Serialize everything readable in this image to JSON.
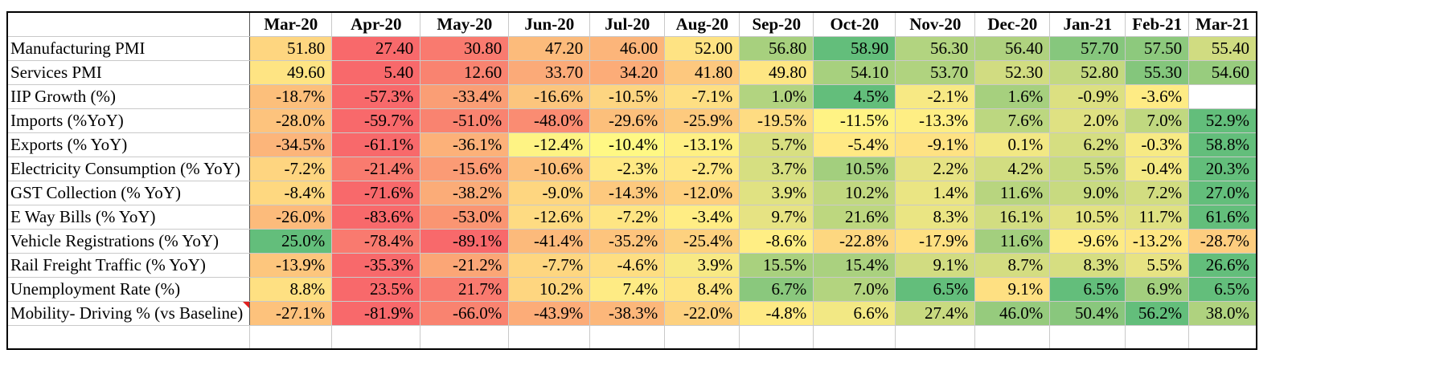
{
  "chart_data": {
    "type": "table",
    "title": "",
    "columns": [
      "Mar-20",
      "Apr-20",
      "May-20",
      "Jun-20",
      "Jul-20",
      "Aug-20",
      "Sep-20",
      "Oct-20",
      "Nov-20",
      "Dec-20",
      "Jan-21",
      "Feb-21",
      "Mar-21"
    ],
    "rows": [
      {
        "label": "Manufacturing PMI",
        "values": [
          "51.80",
          "27.40",
          "30.80",
          "47.20",
          "46.00",
          "52.00",
          "56.80",
          "58.90",
          "56.30",
          "56.40",
          "57.70",
          "57.50",
          "55.40"
        ],
        "colors": [
          "#fed680",
          "#f8696b",
          "#f97a6f",
          "#fcbb7b",
          "#fcb57a",
          "#fee383",
          "#a7d07e",
          "#63be7b",
          "#b2d480",
          "#afd27f",
          "#86c77d",
          "#8dc97d",
          "#d0dc81"
        ]
      },
      {
        "label": "Services PMI",
        "values": [
          "49.60",
          "5.40",
          "12.60",
          "33.70",
          "34.20",
          "41.80",
          "49.80",
          "54.10",
          "53.70",
          "52.30",
          "52.80",
          "55.30",
          "54.60"
        ],
        "colors": [
          "#fee483",
          "#f8696b",
          "#f98370",
          "#fbaa78",
          "#fcac78",
          "#fdc87e",
          "#fee683",
          "#a7d07e",
          "#b0d37f",
          "#d1dc81",
          "#c4d980",
          "#84c67c",
          "#98cc7e"
        ]
      },
      {
        "label": "IIP Growth (%)",
        "values": [
          "-18.7%",
          "-57.3%",
          "-33.4%",
          "-16.6%",
          "-10.5%",
          "-7.1%",
          "1.0%",
          "4.5%",
          "-2.1%",
          "1.6%",
          "-0.9%",
          "-3.6%",
          ""
        ],
        "colors": [
          "#fcbf7b",
          "#f8696b",
          "#fa9e75",
          "#fcc57d",
          "#fdd581",
          "#fedf83",
          "#b2d480",
          "#63be7b",
          "#f7e984",
          "#a6d07e",
          "#dce081",
          "#feeb84",
          "#ffffff"
        ]
      },
      {
        "label": "Imports (%YoY)",
        "values": [
          "-28.0%",
          "-59.7%",
          "-51.0%",
          "-48.0%",
          "-29.6%",
          "-25.9%",
          "-19.5%",
          "-11.5%",
          "-13.3%",
          "7.6%",
          "2.0%",
          "7.0%",
          "52.9%"
        ],
        "colors": [
          "#fdc37d",
          "#f8696b",
          "#f98370",
          "#fa8c72",
          "#fcbf7b",
          "#fdca7e",
          "#fedc82",
          "#fff384",
          "#feee84",
          "#bcd780",
          "#dfe182",
          "#c0d880",
          "#63be7b"
        ]
      },
      {
        "label": "Exports (% YoY)",
        "values": [
          "-34.5%",
          "-61.1%",
          "-36.1%",
          "-12.4%",
          "-10.4%",
          "-13.1%",
          "5.7%",
          "-5.4%",
          "-9.1%",
          "0.1%",
          "6.2%",
          "-0.3%",
          "58.8%"
        ],
        "colors": [
          "#fcb57a",
          "#f8696b",
          "#fcb179",
          "#fef384",
          "#fff884",
          "#fff084",
          "#d8df81",
          "#ffe984",
          "#fee283",
          "#f2e884",
          "#d5de81",
          "#f7ea84",
          "#63be7b"
        ]
      },
      {
        "label": "Electricity Consumption  (% YoY)",
        "values": [
          "-7.2%",
          "-21.4%",
          "-15.6%",
          "-10.6%",
          "-2.3%",
          "-2.7%",
          "3.7%",
          "10.5%",
          "2.2%",
          "4.2%",
          "5.5%",
          "-0.4%",
          "20.3%"
        ],
        "colors": [
          "#fed580",
          "#f97b6f",
          "#fb9b75",
          "#fdc07c",
          "#ffe984",
          "#ffe784",
          "#d6df81",
          "#a3cf7e",
          "#e6e383",
          "#d2dd81",
          "#c6da80",
          "#f4e984",
          "#63be7b"
        ]
      },
      {
        "label": "GST Collection  (% YoY)",
        "values": [
          "-8.4%",
          "-71.6%",
          "-38.2%",
          "-9.0%",
          "-14.3%",
          "-12.0%",
          "3.9%",
          "10.2%",
          "1.4%",
          "11.6%",
          "9.0%",
          "7.2%",
          "27.0%"
        ],
        "colors": [
          "#fed880",
          "#f8696b",
          "#fbac78",
          "#fed680",
          "#fdc97e",
          "#fed07f",
          "#e0e282",
          "#c1d880",
          "#eae583",
          "#b8d57f",
          "#c8da80",
          "#d2dd81",
          "#63be7b"
        ]
      },
      {
        "label": "E Way Bills  (% YoY)",
        "values": [
          "-26.0%",
          "-83.6%",
          "-53.0%",
          "-12.6%",
          "-7.2%",
          "-3.4%",
          "9.7%",
          "21.6%",
          "8.3%",
          "16.1%",
          "10.5%",
          "11.7%",
          "61.6%"
        ],
        "colors": [
          "#fcbb7b",
          "#f8696b",
          "#fa9572",
          "#fedb82",
          "#fee583",
          "#ffed84",
          "#e6e383",
          "#bdd77f",
          "#eae583",
          "#d2dd81",
          "#e2e282",
          "#dfe182",
          "#63be7b"
        ]
      },
      {
        "label": "Vehicle Registrations  (% YoY)",
        "values": [
          "25.0%",
          "-78.4%",
          "-89.1%",
          "-41.4%",
          "-35.2%",
          "-25.4%",
          "-8.6%",
          "-22.8%",
          "-17.9%",
          "11.6%",
          "-9.6%",
          "-13.2%",
          "-28.7%"
        ],
        "colors": [
          "#63be7b",
          "#f97a6f",
          "#f8696b",
          "#fcba7b",
          "#fdc47d",
          "#fdd17f",
          "#ffee84",
          "#fdd780",
          "#fee082",
          "#a3cf7e",
          "#feeb84",
          "#fee683",
          "#fdcd7f"
        ]
      },
      {
        "label": "Rail Freight Traffic  (% YoY)",
        "values": [
          "-13.9%",
          "-35.3%",
          "-21.2%",
          "-7.7%",
          "-4.6%",
          "3.9%",
          "15.5%",
          "15.4%",
          "9.1%",
          "8.7%",
          "8.3%",
          "5.5%",
          "26.6%"
        ],
        "colors": [
          "#fdc67d",
          "#f8696b",
          "#fba676",
          "#fed680",
          "#fede82",
          "#f8e984",
          "#a9d17e",
          "#aad17f",
          "#d1dc81",
          "#d4dd81",
          "#d6de81",
          "#e7e383",
          "#63be7b"
        ]
      },
      {
        "label": "Unemployment Rate (%)",
        "values": [
          "8.8%",
          "23.5%",
          "21.7%",
          "10.2%",
          "7.4%",
          "8.4%",
          "6.7%",
          "7.0%",
          "6.5%",
          "9.1%",
          "6.5%",
          "6.9%",
          "6.5%"
        ],
        "colors": [
          "#fee082",
          "#f8696b",
          "#f97a6f",
          "#fed680",
          "#feeb84",
          "#fee583",
          "#8ac87d",
          "#b3d47f",
          "#63be7b",
          "#fee082",
          "#63be7b",
          "#a3cf7e",
          "#63be7b"
        ]
      },
      {
        "label": "Mobility- Driving % (vs Baseline)",
        "values": [
          "-27.1%",
          "-81.9%",
          "-66.0%",
          "-43.9%",
          "-38.3%",
          "-22.0%",
          "-4.8%",
          "6.6%",
          "27.4%",
          "46.0%",
          "50.4%",
          "56.2%",
          "38.0%"
        ],
        "colors": [
          "#fdc27c",
          "#f8696b",
          "#f98370",
          "#fcac78",
          "#fcb77a",
          "#fdd17f",
          "#feea84",
          "#f2e884",
          "#c8da80",
          "#96cb7d",
          "#89c77d",
          "#63be7b",
          "#afd27f"
        ]
      }
    ]
  }
}
